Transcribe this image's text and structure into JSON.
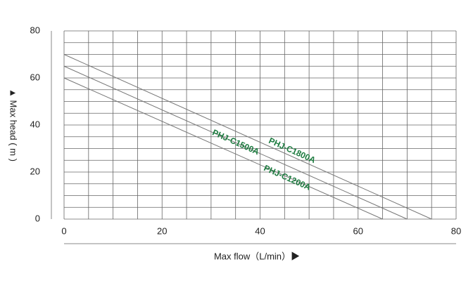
{
  "chart_data": {
    "type": "line",
    "y_label": "▲ Max head ( m )",
    "x_label": "Max flow（L/min）▶",
    "xlim": [
      0,
      80
    ],
    "xticks": [
      0,
      20,
      40,
      60,
      80
    ],
    "ylim": [
      0,
      80
    ],
    "yticks": [
      0,
      20,
      40,
      60,
      80
    ],
    "xgrid": [
      0,
      5,
      10,
      15,
      20,
      25,
      30,
      35,
      40,
      45,
      50,
      55,
      60,
      65,
      70,
      75,
      80
    ],
    "ygrid": [
      0,
      5,
      10,
      15,
      20,
      25,
      30,
      35,
      40,
      45,
      50,
      55,
      60,
      65,
      70,
      75,
      80
    ],
    "grid": true,
    "label_color": "#1b7a3e",
    "series": [
      {
        "name": "PHJ-C1800A",
        "color": "#777777",
        "x": [
          0,
          75
        ],
        "values": [
          70,
          0
        ]
      },
      {
        "name": "PHJ-C1500A",
        "color": "#777777",
        "x": [
          0,
          70
        ],
        "values": [
          65,
          0
        ]
      },
      {
        "name": "PHJ-C1200A",
        "color": "#777777",
        "x": [
          0,
          65
        ],
        "values": [
          60,
          0
        ]
      }
    ]
  }
}
